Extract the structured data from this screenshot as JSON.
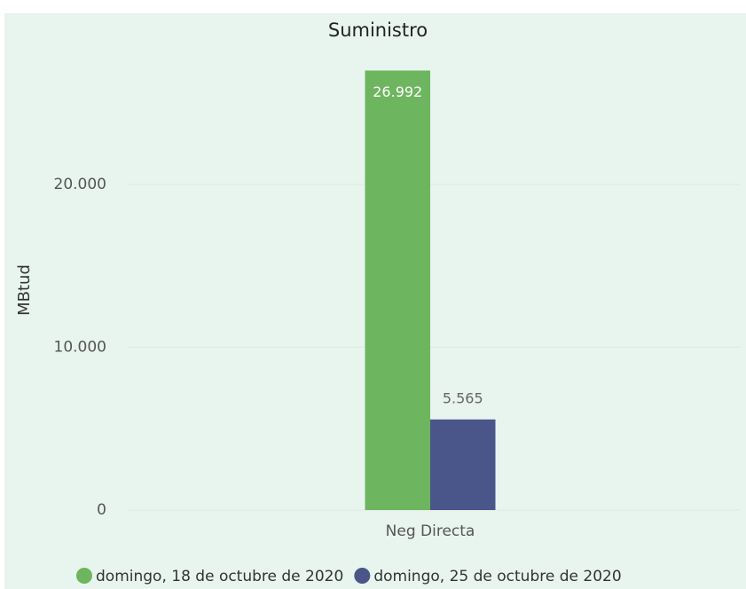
{
  "chart_data": {
    "type": "bar",
    "title": "Suministro",
    "y_label": "MBtud",
    "categories": [
      "Neg Directa"
    ],
    "series": [
      {
        "name": "domingo, 18 de octubre de 2020",
        "color": "#6db55f",
        "values": [
          26992
        ],
        "value_labels": [
          "26.992"
        ]
      },
      {
        "name": "domingo, 25 de octubre de 2020",
        "color": "#4a5589",
        "values": [
          5565
        ],
        "value_labels": [
          "5.565"
        ]
      }
    ],
    "ylim": [
      0,
      28000
    ],
    "yticks": [
      0,
      {
        "value": 10000,
        "label": "10.000"
      },
      {
        "value": 20000,
        "label": "20.000"
      }
    ],
    "grid": true,
    "legend": "bottom"
  }
}
